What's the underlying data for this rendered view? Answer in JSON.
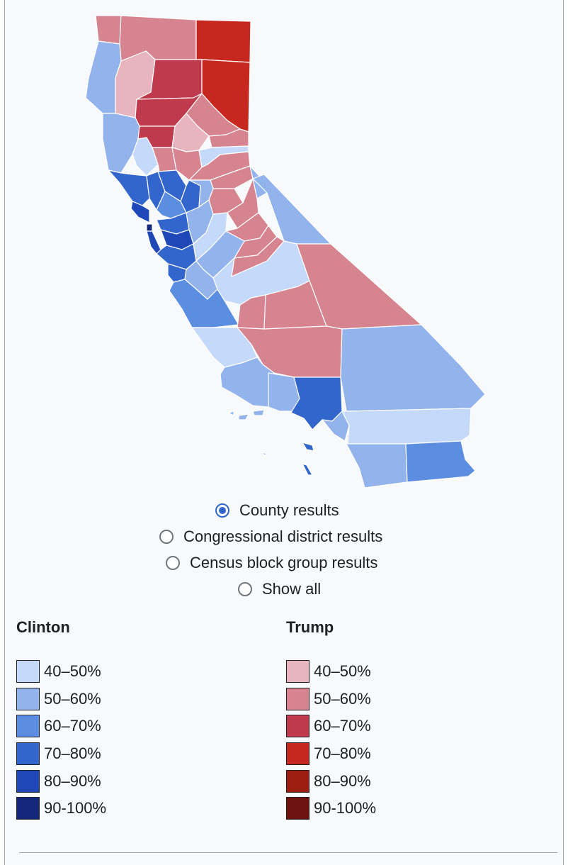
{
  "map": {
    "colors": {
      "clinton_40_50": "#c5d9fb",
      "clinton_50_60": "#92b3ec",
      "clinton_60_70": "#5b8de0",
      "clinton_70_80": "#3366cc",
      "clinton_80_90": "#1f47b8",
      "clinton_90_100": "#13287a",
      "trump_40_50": "#e8b5be",
      "trump_50_60": "#d6848f",
      "trump_60_70": "#c03a4d",
      "trump_70_80": "#c6281f",
      "trump_80_90": "#9e1e12",
      "trump_90_100": "#6e1210"
    }
  },
  "view_options": [
    {
      "label": "County results",
      "checked": true
    },
    {
      "label": "Congressional district results",
      "checked": false
    },
    {
      "label": "Census block group results",
      "checked": false
    },
    {
      "label": "Show all",
      "checked": false
    }
  ],
  "legend": {
    "clinton": {
      "title": "Clinton",
      "items": [
        {
          "label": "40–50%",
          "color": "#c5d9fb"
        },
        {
          "label": "50–60%",
          "color": "#92b3ec"
        },
        {
          "label": "60–70%",
          "color": "#5b8de0"
        },
        {
          "label": "70–80%",
          "color": "#3366cc"
        },
        {
          "label": "80–90%",
          "color": "#1f47b8"
        },
        {
          "label": "90-100%",
          "color": "#13287a"
        }
      ]
    },
    "trump": {
      "title": "Trump",
      "items": [
        {
          "label": "40–50%",
          "color": "#e8b5be"
        },
        {
          "label": "50–60%",
          "color": "#d6848f"
        },
        {
          "label": "60–70%",
          "color": "#c03a4d"
        },
        {
          "label": "70–80%",
          "color": "#c6281f"
        },
        {
          "label": "80–90%",
          "color": "#9e1e12"
        },
        {
          "label": "90-100%",
          "color": "#6e1210"
        }
      ]
    }
  }
}
